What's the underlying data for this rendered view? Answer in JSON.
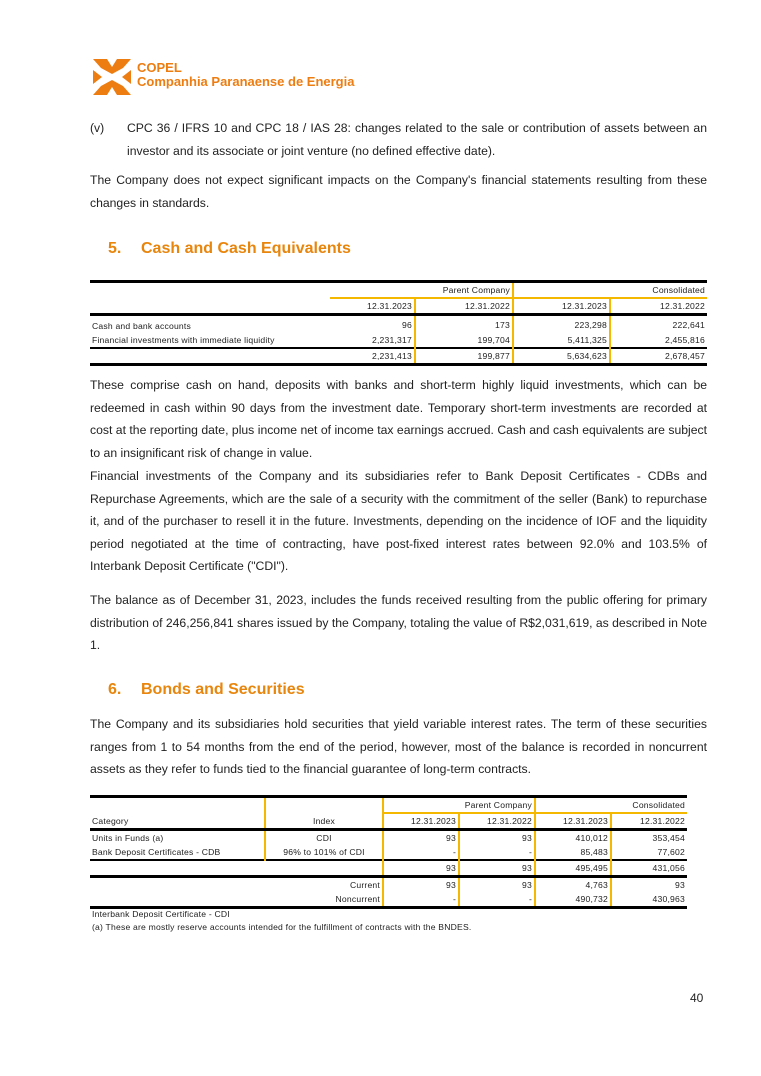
{
  "header": {
    "logo_line1": "COPEL",
    "logo_line2": "Companhia Paranaense de Energia",
    "brand_color": "#ee7d11",
    "icon": "copel-logo-icon"
  },
  "intro": {
    "item_marker": "(v)",
    "item_text": "CPC 36 / IFRS 10 and CPC 18 / IAS 28: changes related to the sale or contribution of assets between an investor and its associate or joint venture (no defined effective date).",
    "paragraph": "The Company does not expect significant impacts on the Company's financial statements resulting from these changes in standards."
  },
  "section5": {
    "number": "5.",
    "title": "Cash and Cash Equivalents",
    "table": {
      "group_headers": [
        "Parent Company",
        "Consolidated"
      ],
      "dates": [
        "12.31.2023",
        "12.31.2022",
        "12.31.2023",
        "12.31.2022"
      ],
      "rows": [
        {
          "label": "Cash and bank accounts",
          "values": [
            "96",
            "173",
            "223,298",
            "222,641"
          ]
        },
        {
          "label": "Financial investments with immediate liquidity",
          "values": [
            "2,231,317",
            "199,704",
            "5,411,325",
            "2,455,816"
          ]
        }
      ],
      "total": [
        "2,231,413",
        "199,877",
        "5,634,623",
        "2,678,457"
      ]
    },
    "paragraphs": [
      "These comprise cash on hand, deposits with banks and short-term highly liquid investments, which can be redeemed in cash within 90 days from the investment date. Temporary short-term investments are recorded at cost at the reporting date, plus income net of income tax earnings accrued. Cash and cash equivalents are subject to an insignificant risk of change in value.",
      "Financial investments of the Company and its subsidiaries refer to Bank Deposit Certificates - CDBs and Repurchase Agreements, which are the sale of a security with the commitment of the seller (Bank) to repurchase it, and of the purchaser to resell it in the future. Investments, depending on the incidence of IOF and the liquidity period negotiated at the time of contracting, have post-fixed interest rates between 92.0% and 103.5% of Interbank Deposit Certificate (\"CDI\").",
      "The balance as of December 31, 2023, includes the funds received resulting from the public offering for primary distribution of 246,256,841 shares issued by the Company, totaling the value of R$2,031,619, as described in Note 1."
    ]
  },
  "section6": {
    "number": "6.",
    "title": "Bonds and Securities",
    "paragraph": "The Company and its subsidiaries hold securities that yield variable interest rates. The term of these securities ranges from 1 to 54 months from the end of the period, however, most of the balance is recorded in noncurrent assets as they refer to funds tied to the financial guarantee of long-term contracts.",
    "table": {
      "col_category": "Category",
      "col_index": "Index",
      "group_headers": [
        "Parent Company",
        "Consolidated"
      ],
      "dates": [
        "12.31.2023",
        "12.31.2022",
        "12.31.2023",
        "12.31.2022"
      ],
      "rows": [
        {
          "label": "Units in Funds (a)",
          "index": "CDI",
          "values": [
            "93",
            "93",
            "410,012",
            "353,454"
          ]
        },
        {
          "label": "Bank Deposit Certificates - CDB",
          "index": "96% to 101% of CDI",
          "values": [
            "-",
            "-",
            "85,483",
            "77,602"
          ]
        }
      ],
      "total": [
        "93",
        "93",
        "495,495",
        "431,056"
      ],
      "current": {
        "label": "Current",
        "values": [
          "93",
          "93",
          "4,763",
          "93"
        ]
      },
      "noncurrent": {
        "label": "Noncurrent",
        "values": [
          "-",
          "-",
          "490,732",
          "430,963"
        ]
      }
    },
    "footnotes": [
      "Interbank Deposit Certificate - CDI",
      "(a) These are mostly reserve accounts intended for the fulfillment of contracts with the BNDES."
    ]
  },
  "footer": {
    "page_number": "40"
  }
}
